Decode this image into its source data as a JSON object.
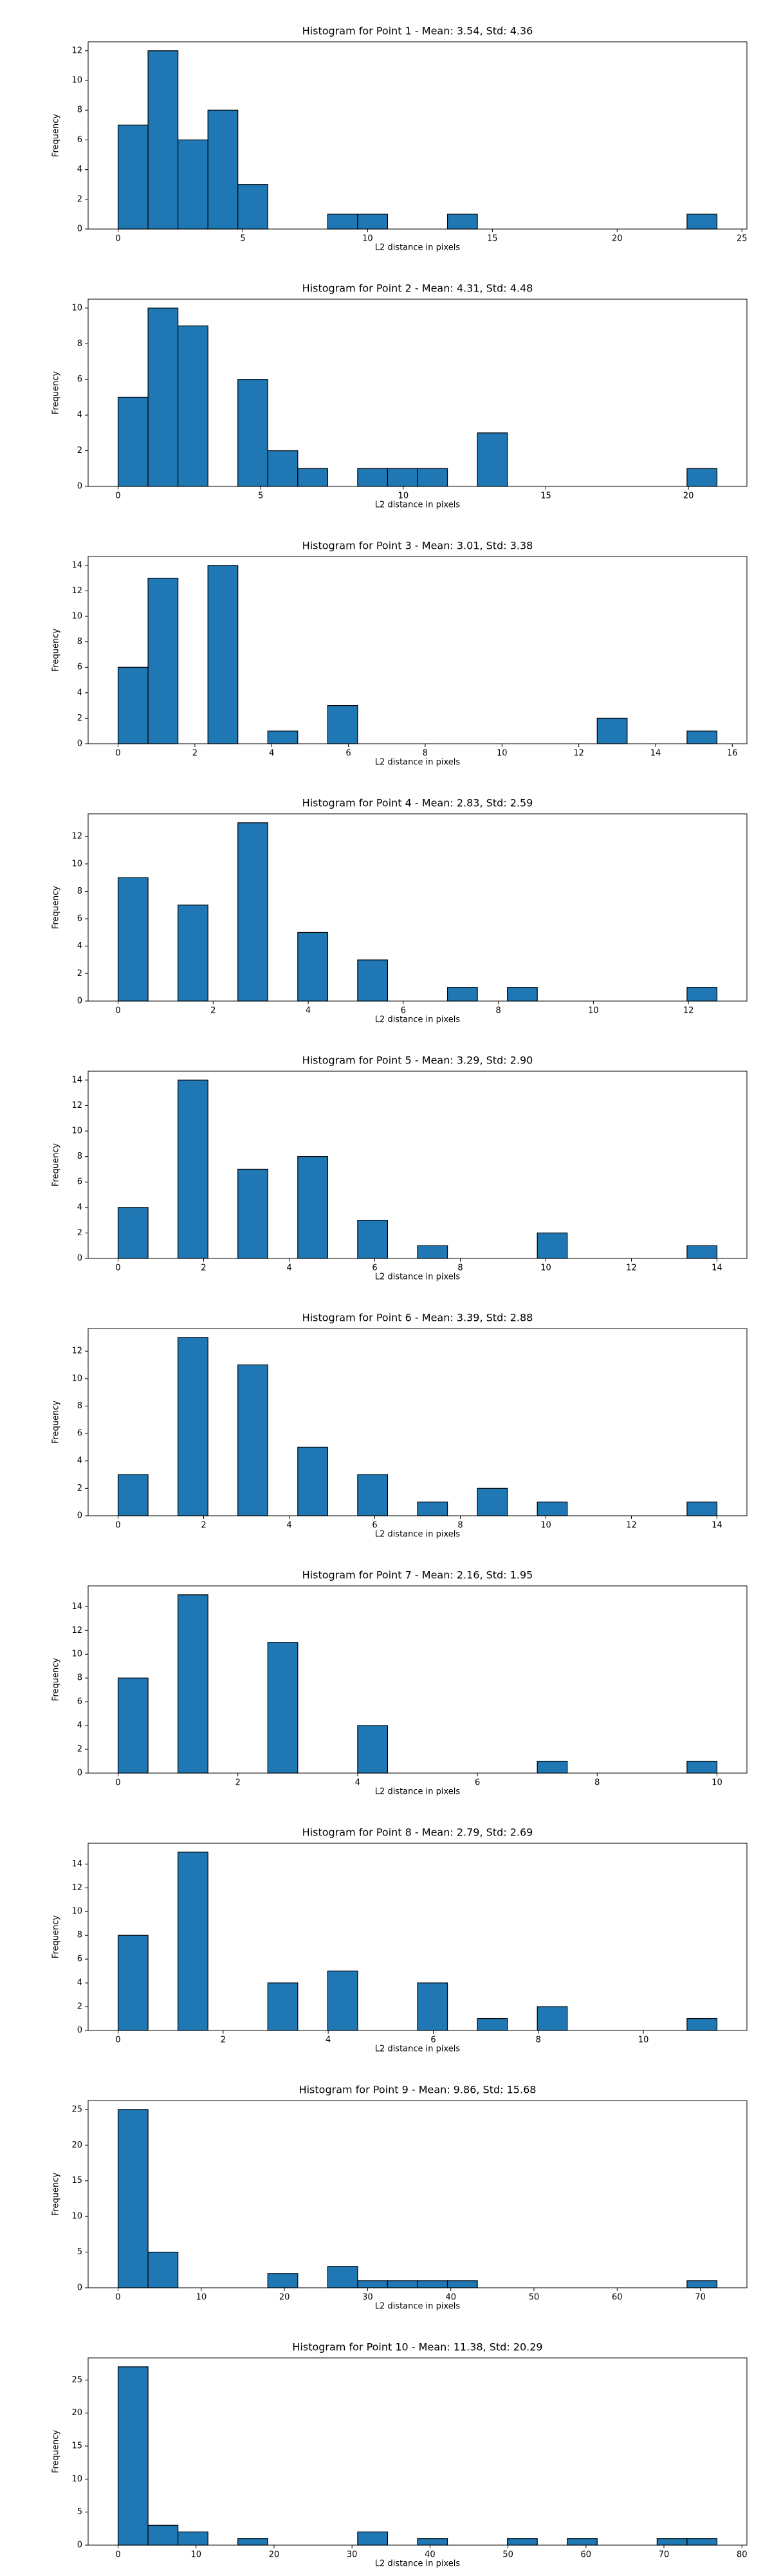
{
  "chart_data": [
    {
      "type": "histogram",
      "title": "Histogram for Point 1 - Mean: 3.54, Std: 4.36",
      "xlabel": "L2 distance in pixels",
      "ylabel": "Frequency",
      "color": "#1f77b4",
      "edgecolor": "#000000",
      "bins": [
        0,
        1.2,
        2.4,
        3.6,
        4.8,
        6,
        7.2,
        8.4,
        9.6,
        10.8,
        12,
        13.2,
        14.4,
        15.6,
        16.8,
        18,
        19.2,
        20.4,
        21.6,
        22.8,
        24
      ],
      "counts": [
        7,
        12,
        6,
        8,
        3,
        0,
        0,
        1,
        1,
        0,
        0,
        1,
        0,
        0,
        0,
        0,
        0,
        0,
        0,
        1
      ],
      "xlim": [
        -1.2,
        25.2
      ],
      "xticks": [
        0,
        5,
        10,
        15,
        20,
        25
      ],
      "ylim": [
        0,
        12.6
      ],
      "yticks": [
        0,
        2,
        4,
        6,
        8,
        10,
        12
      ]
    },
    {
      "type": "histogram",
      "title": "Histogram for Point 2 - Mean: 4.31, Std: 4.48",
      "xlabel": "L2 distance in pixels",
      "ylabel": "Frequency",
      "color": "#1f77b4",
      "edgecolor": "#000000",
      "bins": [
        0,
        1.05,
        2.1,
        3.15,
        4.2,
        5.25,
        6.3,
        7.35,
        8.4,
        9.45,
        10.5,
        11.55,
        12.6,
        13.65,
        14.7,
        15.75,
        16.8,
        17.85,
        18.9,
        19.95,
        21
      ],
      "counts": [
        5,
        10,
        9,
        0,
        6,
        2,
        1,
        0,
        1,
        1,
        1,
        0,
        3,
        0,
        0,
        0,
        0,
        0,
        0,
        1
      ],
      "xlim": [
        -1.05,
        22.05
      ],
      "xticks": [
        0,
        5,
        10,
        15,
        20
      ],
      "ylim": [
        0,
        10.5
      ],
      "yticks": [
        0,
        2,
        4,
        6,
        8,
        10
      ]
    },
    {
      "type": "histogram",
      "title": "Histogram for Point 3 - Mean: 3.01, Std: 3.38",
      "xlabel": "L2 distance in pixels",
      "ylabel": "Frequency",
      "color": "#1f77b4",
      "edgecolor": "#000000",
      "bins": [
        0,
        0.78,
        1.56,
        2.34,
        3.12,
        3.9,
        4.68,
        5.46,
        6.24,
        7.02,
        7.8,
        8.58,
        9.36,
        10.14,
        10.92,
        11.7,
        12.48,
        13.26,
        14.04,
        14.82,
        15.6
      ],
      "counts": [
        6,
        13,
        0,
        14,
        0,
        1,
        0,
        3,
        0,
        0,
        0,
        0,
        0,
        0,
        0,
        0,
        2,
        0,
        0,
        1
      ],
      "xlim": [
        -0.78,
        16.38
      ],
      "xticks": [
        0,
        2,
        4,
        6,
        8,
        10,
        12,
        14,
        16
      ],
      "ylim": [
        0,
        14.7
      ],
      "yticks": [
        0,
        2,
        4,
        6,
        8,
        10,
        12,
        14
      ]
    },
    {
      "type": "histogram",
      "title": "Histogram for Point 4 - Mean: 2.83, Std: 2.59",
      "xlabel": "L2 distance in pixels",
      "ylabel": "Frequency",
      "color": "#1f77b4",
      "edgecolor": "#000000",
      "bins": [
        0,
        0.63,
        1.26,
        1.89,
        2.52,
        3.15,
        3.78,
        4.41,
        5.04,
        5.67,
        6.3,
        6.93,
        7.56,
        8.19,
        8.82,
        9.45,
        10.08,
        10.71,
        11.34,
        11.97,
        12.6
      ],
      "counts": [
        9,
        0,
        7,
        0,
        13,
        0,
        5,
        0,
        3,
        0,
        0,
        1,
        0,
        1,
        0,
        0,
        0,
        0,
        0,
        1
      ],
      "xlim": [
        -0.63,
        13.23
      ],
      "xticks": [
        0,
        2,
        4,
        6,
        8,
        10,
        12
      ],
      "ylim": [
        0,
        13.65
      ],
      "yticks": [
        0,
        2,
        4,
        6,
        8,
        10,
        12
      ]
    },
    {
      "type": "histogram",
      "title": "Histogram for Point 5 - Mean: 3.29, Std: 2.90",
      "xlabel": "L2 distance in pixels",
      "ylabel": "Frequency",
      "color": "#1f77b4",
      "edgecolor": "#000000",
      "bins": [
        0,
        0.7,
        1.4,
        2.1,
        2.8,
        3.5,
        4.2,
        4.9,
        5.6,
        6.3,
        7,
        7.7,
        8.4,
        9.1,
        9.8,
        10.5,
        11.2,
        11.9,
        12.6,
        13.3,
        14
      ],
      "counts": [
        4,
        0,
        14,
        0,
        7,
        0,
        8,
        0,
        3,
        0,
        1,
        0,
        0,
        0,
        2,
        0,
        0,
        0,
        0,
        1
      ],
      "xlim": [
        -0.7,
        14.7
      ],
      "xticks": [
        0,
        2,
        4,
        6,
        8,
        10,
        12,
        14
      ],
      "ylim": [
        0,
        14.7
      ],
      "yticks": [
        0,
        2,
        4,
        6,
        8,
        10,
        12,
        14
      ]
    },
    {
      "type": "histogram",
      "title": "Histogram for Point 6 - Mean: 3.39, Std: 2.88",
      "xlabel": "L2 distance in pixels",
      "ylabel": "Frequency",
      "color": "#1f77b4",
      "edgecolor": "#000000",
      "bins": [
        0,
        0.7,
        1.4,
        2.1,
        2.8,
        3.5,
        4.2,
        4.9,
        5.6,
        6.3,
        7,
        7.7,
        8.4,
        9.1,
        9.8,
        10.5,
        11.2,
        11.9,
        12.6,
        13.3,
        14
      ],
      "counts": [
        3,
        0,
        13,
        0,
        11,
        0,
        5,
        0,
        3,
        0,
        1,
        0,
        2,
        0,
        1,
        0,
        0,
        0,
        0,
        1
      ],
      "xlim": [
        -0.7,
        14.7
      ],
      "xticks": [
        0,
        2,
        4,
        6,
        8,
        10,
        12,
        14
      ],
      "ylim": [
        0,
        13.65
      ],
      "yticks": [
        0,
        2,
        4,
        6,
        8,
        10,
        12
      ]
    },
    {
      "type": "histogram",
      "title": "Histogram for Point 7 - Mean: 2.16, Std: 1.95",
      "xlabel": "L2 distance in pixels",
      "ylabel": "Frequency",
      "color": "#1f77b4",
      "edgecolor": "#000000",
      "bins": [
        0,
        0.5,
        1,
        1.5,
        2,
        2.5,
        3,
        3.5,
        4,
        4.5,
        5,
        5.5,
        6,
        6.5,
        7,
        7.5,
        8,
        8.5,
        9,
        9.5,
        10
      ],
      "counts": [
        8,
        0,
        15,
        0,
        0,
        11,
        0,
        0,
        4,
        0,
        0,
        0,
        0,
        0,
        1,
        0,
        0,
        0,
        0,
        1
      ],
      "xlim": [
        -0.5,
        10.5
      ],
      "xticks": [
        0,
        2,
        4,
        6,
        8,
        10
      ],
      "ylim": [
        0,
        15.75
      ],
      "yticks": [
        0,
        2,
        4,
        6,
        8,
        10,
        12,
        14
      ]
    },
    {
      "type": "histogram",
      "title": "Histogram for Point 8 - Mean: 2.79, Std: 2.69",
      "xlabel": "L2 distance in pixels",
      "ylabel": "Frequency",
      "color": "#1f77b4",
      "edgecolor": "#000000",
      "bins": [
        0,
        0.57,
        1.14,
        1.71,
        2.28,
        2.85,
        3.42,
        3.99,
        4.56,
        5.13,
        5.7,
        6.27,
        6.84,
        7.41,
        7.98,
        8.55,
        9.12,
        9.69,
        10.26,
        10.83,
        11.4
      ],
      "counts": [
        8,
        0,
        15,
        0,
        0,
        4,
        0,
        5,
        0,
        0,
        4,
        0,
        1,
        0,
        2,
        0,
        0,
        0,
        0,
        1
      ],
      "xlim": [
        -0.57,
        11.97
      ],
      "xticks": [
        0,
        2,
        4,
        6,
        8,
        10
      ],
      "ylim": [
        0,
        15.75
      ],
      "yticks": [
        0,
        2,
        4,
        6,
        8,
        10,
        12,
        14
      ]
    },
    {
      "type": "histogram",
      "title": "Histogram for Point 9 - Mean: 9.86, Std: 15.68",
      "xlabel": "L2 distance in pixels",
      "ylabel": "Frequency",
      "color": "#1f77b4",
      "edgecolor": "#000000",
      "bins": [
        0,
        3.6,
        7.2,
        10.8,
        14.4,
        18,
        21.6,
        25.2,
        28.8,
        32.4,
        36,
        39.6,
        43.2,
        46.8,
        50.4,
        54,
        57.6,
        61.2,
        64.8,
        68.4,
        72
      ],
      "counts": [
        25,
        5,
        0,
        0,
        0,
        2,
        0,
        3,
        1,
        1,
        1,
        1,
        0,
        0,
        0,
        0,
        0,
        0,
        0,
        1
      ],
      "xlim": [
        -3.6,
        75.6
      ],
      "xticks": [
        0,
        10,
        20,
        30,
        40,
        50,
        60,
        70
      ],
      "ylim": [
        0,
        26.25
      ],
      "yticks": [
        0,
        5,
        10,
        15,
        20,
        25
      ]
    },
    {
      "type": "histogram",
      "title": "Histogram for Point 10 - Mean: 11.38, Std: 20.29",
      "xlabel": "L2 distance in pixels",
      "ylabel": "Frequency",
      "color": "#1f77b4",
      "edgecolor": "#000000",
      "bins": [
        0,
        3.84,
        7.68,
        11.52,
        15.36,
        19.2,
        23.04,
        26.88,
        30.72,
        34.56,
        38.4,
        42.24,
        46.08,
        49.92,
        53.76,
        57.6,
        61.44,
        65.28,
        69.12,
        72.96,
        76.8
      ],
      "counts": [
        27,
        3,
        2,
        0,
        1,
        0,
        0,
        0,
        2,
        0,
        1,
        0,
        0,
        1,
        0,
        1,
        0,
        0,
        1,
        1
      ],
      "xlim": [
        -3.84,
        80.64
      ],
      "xticks": [
        0,
        10,
        20,
        30,
        40,
        50,
        60,
        70,
        80
      ],
      "ylim": [
        0,
        28.35
      ],
      "yticks": [
        0,
        5,
        10,
        15,
        20,
        25
      ]
    }
  ]
}
